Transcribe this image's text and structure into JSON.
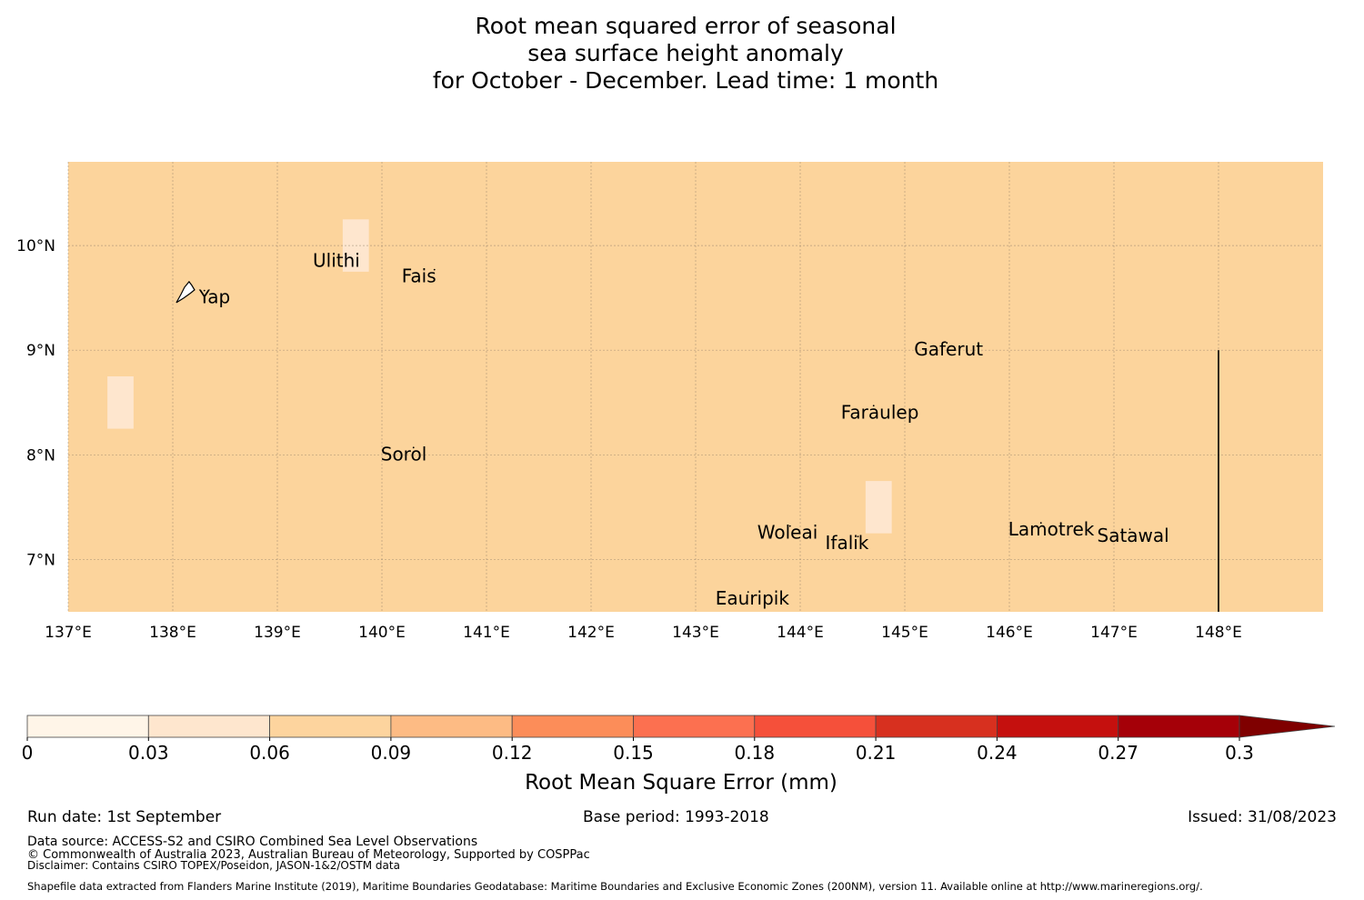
{
  "title": {
    "line1": "Root mean squared error of seasonal",
    "line2": "sea surface height anomaly",
    "line3": "for October - December. Lead time: 1 month"
  },
  "map": {
    "background_color": "#fcd49c",
    "lon_ticks": [
      "137°E",
      "138°E",
      "139°E",
      "140°E",
      "141°E",
      "142°E",
      "143°E",
      "144°E",
      "145°E",
      "146°E",
      "147°E",
      "148°E"
    ],
    "lat_ticks": [
      "10°N",
      "9°N",
      "8°N",
      "7°N"
    ],
    "lon_range": [
      137,
      149
    ],
    "lat_range": [
      6.5,
      10.8
    ],
    "islands": [
      {
        "name": "Yap",
        "lon": 138.25,
        "lat": 9.5
      },
      {
        "name": "Ulithi",
        "lon": 139.6,
        "lat": 9.85
      },
      {
        "name": "Fais",
        "lon": 140.45,
        "lat": 9.7
      },
      {
        "name": "Gaferut",
        "lon": 145.35,
        "lat": 9.0
      },
      {
        "name": "Faraulep",
        "lon": 144.65,
        "lat": 8.4
      },
      {
        "name": "Sorol",
        "lon": 140.25,
        "lat": 8.0
      },
      {
        "name": "Woleai",
        "lon": 143.85,
        "lat": 7.25
      },
      {
        "name": "Ifalik",
        "lon": 144.5,
        "lat": 7.15
      },
      {
        "name": "Lamotrek",
        "lon": 146.25,
        "lat": 7.28
      },
      {
        "name": "Satawal",
        "lon": 147.1,
        "lat": 7.22
      },
      {
        "name": "Eauripik",
        "lon": 143.45,
        "lat": 6.62
      }
    ],
    "low_error_cells": [
      {
        "lon": [
          139.625,
          139.875
        ],
        "lat": [
          9.75,
          10.25
        ]
      },
      {
        "lon": [
          137.375,
          137.625
        ],
        "lat": [
          8.25,
          8.75
        ]
      },
      {
        "lon": [
          144.625,
          144.875
        ],
        "lat": [
          7.25,
          7.75
        ]
      }
    ],
    "boundary_line": {
      "lon": 148.0,
      "lat": [
        6.5,
        9.0
      ]
    }
  },
  "colorbar": {
    "label": "Root Mean Square Error (mm)",
    "ticks": [
      "0",
      "0.03",
      "0.06",
      "0.09",
      "0.12",
      "0.15",
      "0.18",
      "0.21",
      "0.24",
      "0.27",
      "0.3"
    ],
    "colors": [
      "#fff5e8",
      "#fee6ce",
      "#fdd49e",
      "#fdbb84",
      "#fc8d59",
      "#fc7050",
      "#f5503a",
      "#d7301f",
      "#c5100e",
      "#a50008",
      "#7f0000"
    ]
  },
  "footer": {
    "run_date": "Run date: 1st September",
    "base_period": "Base period: 1993-2018",
    "issued": "Issued: 31/08/2023",
    "data_source": "Data source: ACCESS-S2 and CSIRO Combined Sea Level Observations",
    "copyright": "© Commonwealth of Australia 2023, Australian Bureau of Meteorology, Supported by COSPPac",
    "disclaimer": "Disclaimer: Contains CSIRO TOPEX/Poseidon, JASON-1&2/OSTM data",
    "shapefile": "Shapefile data extracted from Flanders Marine Institute (2019), Maritime Boundaries Geodatabase: Maritime Boundaries and Exclusive Economic Zones (200NM), version 11. Available online at http://www.marineregions.org/."
  }
}
